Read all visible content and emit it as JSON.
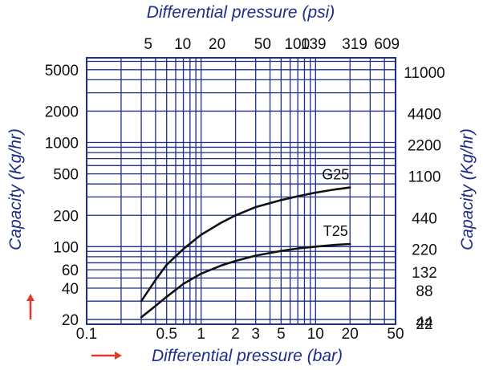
{
  "chart_data": {
    "type": "line",
    "top_axis_title": "Differential pressure (psi)",
    "bottom_axis_title": "Differential pressure (bar)",
    "left_axis_title": "Capacity (Kg/hr)",
    "right_axis_title": "Capacity (Kg/hr)",
    "x_scale": "log",
    "y_scale": "log",
    "xlim": [
      0.1,
      50
    ],
    "ylim": [
      18,
      6500
    ],
    "grid": true,
    "bottom_ticks": [
      {
        "value": 0.1,
        "label": "0.1"
      },
      {
        "value": 0.5,
        "label": "0.5"
      },
      {
        "value": 1,
        "label": "1"
      },
      {
        "value": 2,
        "label": "2"
      },
      {
        "value": 3,
        "label": "3"
      },
      {
        "value": 5,
        "label": "5"
      },
      {
        "value": 10,
        "label": "10"
      },
      {
        "value": 20,
        "label": "20"
      },
      {
        "value": 50,
        "label": "50"
      }
    ],
    "top_ticks": [
      {
        "value": 0.345,
        "label": "5"
      },
      {
        "value": 0.69,
        "label": "10"
      },
      {
        "value": 1.38,
        "label": "20"
      },
      {
        "value": 3.45,
        "label": "50"
      },
      {
        "value": 6.9,
        "label": "100"
      },
      {
        "value": 9.6,
        "label": "139"
      },
      {
        "value": 22,
        "label": "319"
      },
      {
        "value": 42,
        "label": "609"
      }
    ],
    "left_ticks": [
      {
        "value": 5000,
        "label": "5000"
      },
      {
        "value": 2000,
        "label": "2000"
      },
      {
        "value": 1000,
        "label": "1000"
      },
      {
        "value": 500,
        "label": "500"
      },
      {
        "value": 200,
        "label": "200"
      },
      {
        "value": 100,
        "label": "100"
      },
      {
        "value": 60,
        "label": "60"
      },
      {
        "value": 40,
        "label": "40"
      },
      {
        "value": 20,
        "label": "20"
      }
    ],
    "right_ticks": [
      {
        "value": 5000,
        "label": "11000"
      },
      {
        "value": 2000,
        "label": "4400"
      },
      {
        "value": 1000,
        "label": "2200"
      },
      {
        "value": 500,
        "label": "1100"
      },
      {
        "value": 200,
        "label": "440"
      },
      {
        "value": 100,
        "label": "220"
      },
      {
        "value": 60,
        "label": "132"
      },
      {
        "value": 40,
        "label": "88"
      },
      {
        "value": 20,
        "label": "44"
      },
      {
        "value": 10,
        "label": "22"
      }
    ],
    "series": [
      {
        "name": "G25",
        "color": "#111111",
        "x": [
          0.3,
          0.4,
          0.5,
          0.7,
          1,
          1.5,
          2,
          3,
          5,
          7,
          10,
          15,
          20
        ],
        "y": [
          30,
          48,
          67,
          95,
          130,
          170,
          200,
          240,
          280,
          305,
          330,
          355,
          370
        ]
      },
      {
        "name": "T25",
        "color": "#111111",
        "x": [
          0.3,
          0.4,
          0.5,
          0.7,
          1,
          1.5,
          2,
          3,
          5,
          7,
          10,
          15,
          20
        ],
        "y": [
          21,
          27,
          33,
          44,
          55,
          66,
          73,
          82,
          91,
          96,
          100,
          104,
          106
        ]
      }
    ],
    "colors": {
      "grid": "#1d2e8c",
      "title": "#1d2e8c",
      "arrow": "#e03a2a",
      "curve": "#111111",
      "tick_text": "#111111"
    }
  }
}
